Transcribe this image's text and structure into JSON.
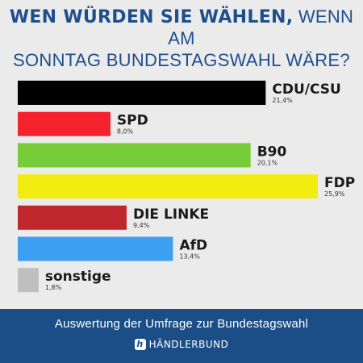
{
  "title": {
    "bold": "WEN WÜRDEN SIE WÄHLEN,",
    "rest": " WENN AM",
    "line2": "SONNTAG BUNDESTAGSWAHL WÄRE?"
  },
  "footer": {
    "text": "Auswertung der Umfrage zur Bundestagswahl",
    "logo_text": "HÄNDLERBUND",
    "logo_icon": "haendlerbund-logo-icon"
  },
  "chart_data": {
    "type": "bar",
    "orientation": "horizontal",
    "categories": [
      "CDU/CSU",
      "SPD",
      "B90",
      "FDP",
      "DIE LINKE",
      "AfD",
      "sonstige"
    ],
    "values": [
      21.4,
      8.0,
      20.1,
      25.9,
      9.4,
      13.4,
      1.8
    ],
    "value_labels": [
      "21,4%",
      "8,0%",
      "20,1%",
      "25,9%",
      "9,4%",
      "13,4%",
      "1,8%"
    ],
    "colors": [
      "#000000",
      "#f4222d",
      "#77cc3a",
      "#f2ec11",
      "#c0272d",
      "#3d9ff2",
      "#bfbfbf"
    ],
    "xlim": [
      0,
      25.9
    ]
  }
}
